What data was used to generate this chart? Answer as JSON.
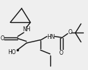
{
  "bg_color": "#efefef",
  "line_color": "#111111",
  "text_color": "#111111",
  "lw": 1.0,
  "fs": 5.5,
  "figsize": [
    1.26,
    1.01
  ],
  "dpi": 100,
  "xlim": [
    0,
    1
  ],
  "ylim": [
    0,
    1
  ]
}
